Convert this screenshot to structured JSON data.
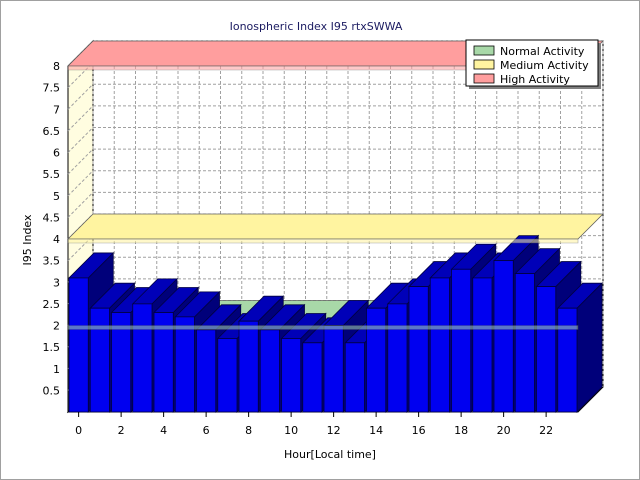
{
  "chart_data": {
    "type": "bar",
    "title": "Ionospheric Index I95 rtxSWWA",
    "xlabel": "Hour[Local time]",
    "ylabel": "I95 Index",
    "ylim": [
      0,
      8
    ],
    "y_ticks": [
      "0.5",
      "1",
      "1.5",
      "2",
      "2.5",
      "3",
      "3.5",
      "4",
      "4.5",
      "5",
      "5.5",
      "6",
      "6.5",
      "7",
      "7.5",
      "8"
    ],
    "x_ticks": [
      "0",
      "2",
      "4",
      "6",
      "8",
      "10",
      "12",
      "14",
      "16",
      "18",
      "20",
      "22"
    ],
    "grid": true,
    "three_d": true,
    "legend_position": "top-right",
    "x": [
      0,
      1,
      2,
      3,
      4,
      5,
      6,
      7,
      8,
      9,
      10,
      11,
      12,
      13,
      14,
      15,
      16,
      17,
      18,
      19,
      20,
      21,
      22,
      23
    ],
    "values": [
      3.1,
      2.4,
      2.3,
      2.5,
      2.3,
      2.2,
      1.9,
      1.7,
      2.1,
      1.9,
      1.7,
      1.6,
      2.0,
      1.6,
      2.4,
      2.5,
      2.9,
      3.1,
      3.3,
      3.1,
      3.5,
      3.2,
      2.9,
      2.4
    ],
    "bar_color": "#0000f0",
    "bands": [
      {
        "name": "Normal Activity",
        "level": 2.0,
        "color": "#a8d8a8"
      },
      {
        "name": "Medium Activity",
        "level": 4.0,
        "color": "#fff4a0"
      },
      {
        "name": "High Activity",
        "level": 8.0,
        "color": "#ff9e9e"
      }
    ]
  }
}
